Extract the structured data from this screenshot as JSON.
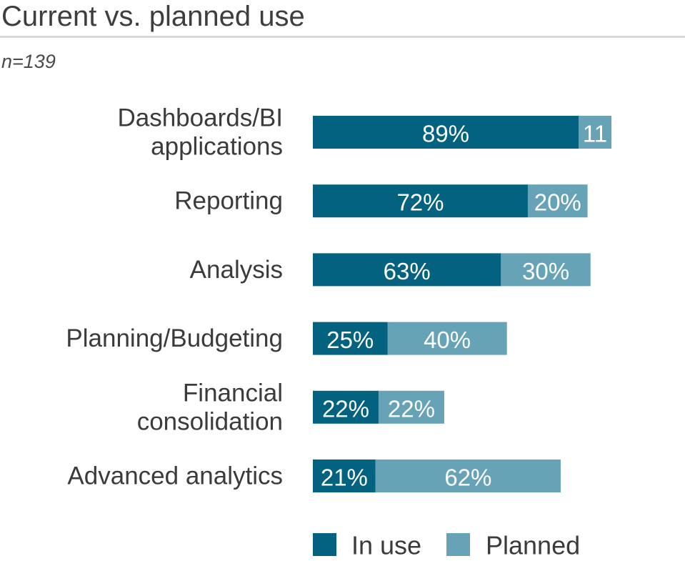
{
  "title": "Current vs. planned use",
  "subtitle": "n=139",
  "chart_data": {
    "type": "bar",
    "orientation": "horizontal",
    "stacked": true,
    "categories": [
      [
        "Dashboards/BI",
        "applications"
      ],
      [
        "Reporting"
      ],
      [
        "Analysis"
      ],
      [
        "Planning/Budgeting"
      ],
      [
        "Financial",
        "consolidation"
      ],
      [
        "Advanced analytics"
      ]
    ],
    "series": [
      {
        "name": "In use",
        "color": "#02627f",
        "values": [
          89,
          72,
          63,
          25,
          22,
          21
        ],
        "labels": [
          "89%",
          "72%",
          "63%",
          "25%",
          "22%",
          "21%"
        ]
      },
      {
        "name": "Planned",
        "color": "#66a3b7",
        "values": [
          11,
          20,
          30,
          40,
          22,
          62
        ],
        "labels": [
          "11",
          "20%",
          "30%",
          "40%",
          "22%",
          "62%"
        ]
      }
    ],
    "xlim": [
      0,
      100
    ],
    "grid": false,
    "legend_position": "bottom"
  }
}
